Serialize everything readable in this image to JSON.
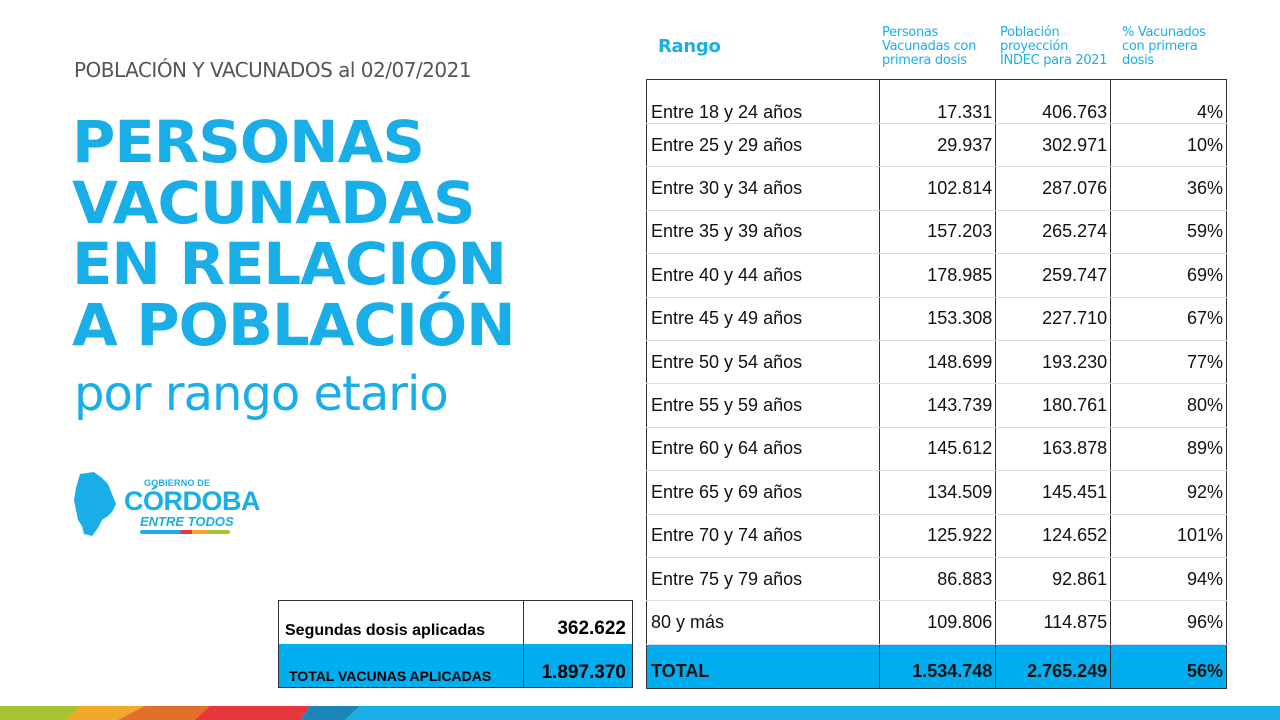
{
  "header": {
    "subtitle": "POBLACIÓN Y VACUNADOS al 02/07/2021",
    "headline_lines": [
      "PERSONAS",
      "VACUNADAS",
      "EN RELACION",
      "A POBLACIÓN"
    ],
    "subhead": "por rango etario"
  },
  "logo": {
    "icon": "cordoba-province-map-icon",
    "line1": "GOBIERNO DE",
    "line2": "CÓRDOBA",
    "line3": "ENTRE TODOS"
  },
  "colors": {
    "accent": "#1aaee8",
    "total_row_bg": "#00adef",
    "text": "#111111",
    "subtitle": "#555555"
  },
  "table": {
    "headers": {
      "rango": "Rango",
      "vacunados": [
        "Personas",
        "Vacunadas con",
        "primera dosis"
      ],
      "poblacion": [
        "Población",
        "proyección",
        "INDEC para 2021"
      ],
      "porcentaje": [
        "% Vacunados",
        "con primera",
        "dosis"
      ]
    },
    "rows": [
      {
        "rango": "Entre 18 y 24 años",
        "vacunados": "17.331",
        "poblacion": "406.763",
        "porcentaje": "4%"
      },
      {
        "rango": "Entre 25 y 29 años",
        "vacunados": "29.937",
        "poblacion": "302.971",
        "porcentaje": "10%"
      },
      {
        "rango": "Entre 30 y 34 años",
        "vacunados": "102.814",
        "poblacion": "287.076",
        "porcentaje": "36%"
      },
      {
        "rango": "Entre 35 y 39 años",
        "vacunados": "157.203",
        "poblacion": "265.274",
        "porcentaje": "59%"
      },
      {
        "rango": "Entre 40 y 44 años",
        "vacunados": "178.985",
        "poblacion": "259.747",
        "porcentaje": "69%"
      },
      {
        "rango": "Entre 45 y 49 años",
        "vacunados": "153.308",
        "poblacion": "227.710",
        "porcentaje": "67%"
      },
      {
        "rango": "Entre 50 y 54 años",
        "vacunados": "148.699",
        "poblacion": "193.230",
        "porcentaje": "77%"
      },
      {
        "rango": "Entre 55 y 59 años",
        "vacunados": "143.739",
        "poblacion": "180.761",
        "porcentaje": "80%"
      },
      {
        "rango": "Entre 60 y 64 años",
        "vacunados": "145.612",
        "poblacion": "163.878",
        "porcentaje": "89%"
      },
      {
        "rango": "Entre 65 y 69 años",
        "vacunados": "134.509",
        "poblacion": "145.451",
        "porcentaje": "92%"
      },
      {
        "rango": "Entre 70 y 74 años",
        "vacunados": "125.922",
        "poblacion": "124.652",
        "porcentaje": "101%"
      },
      {
        "rango": "Entre 75 y 79 años",
        "vacunados": "86.883",
        "poblacion": "92.861",
        "porcentaje": "94%"
      },
      {
        "rango": "80 y más",
        "vacunados": "109.806",
        "poblacion": "114.875",
        "porcentaje": "96%"
      }
    ],
    "total": {
      "rango": "TOTAL",
      "vacunados": "1.534.748",
      "poblacion": "2.765.249",
      "porcentaje": "56%"
    }
  },
  "summary": {
    "segundas_label": "Segundas dosis aplicadas",
    "segundas_value": "362.622",
    "total_label": "TOTAL VACUNAS APLICADAS",
    "total_value": "1.897.370"
  },
  "chart_data": {
    "type": "table",
    "title": "PERSONAS VACUNADAS EN RELACION A POBLACIÓN por rango etario",
    "subtitle": "POBLACIÓN Y VACUNADOS al 02/07/2021",
    "columns": [
      "Rango",
      "Personas Vacunadas con primera dosis",
      "Población proyección INDEC para 2021",
      "% Vacunados con primera dosis"
    ],
    "categories": [
      "Entre 18 y 24 años",
      "Entre 25 y 29 años",
      "Entre 30 y 34 años",
      "Entre 35 y 39 años",
      "Entre 40 y 44 años",
      "Entre 45 y 49 años",
      "Entre 50 y 54 años",
      "Entre 55 y 59 años",
      "Entre 60 y 64 años",
      "Entre 65 y 69 años",
      "Entre 70 y 74 años",
      "Entre 75 y 79 años",
      "80 y más"
    ],
    "series": [
      {
        "name": "Personas Vacunadas con primera dosis",
        "values": [
          17331,
          29937,
          102814,
          157203,
          178985,
          153308,
          148699,
          143739,
          145612,
          134509,
          125922,
          86883,
          109806
        ]
      },
      {
        "name": "Población proyección INDEC para 2021",
        "values": [
          406763,
          302971,
          287076,
          265274,
          259747,
          227710,
          193230,
          180761,
          163878,
          145451,
          124652,
          92861,
          114875
        ]
      },
      {
        "name": "% Vacunados con primera dosis",
        "values": [
          4,
          10,
          36,
          59,
          69,
          67,
          77,
          80,
          89,
          92,
          101,
          94,
          96
        ]
      }
    ],
    "totals": {
      "vacunados": 1534748,
      "poblacion": 2765249,
      "porcentaje": 56
    },
    "extra": {
      "segundas_dosis_aplicadas": 362622,
      "total_vacunas_aplicadas": 1897370
    }
  }
}
